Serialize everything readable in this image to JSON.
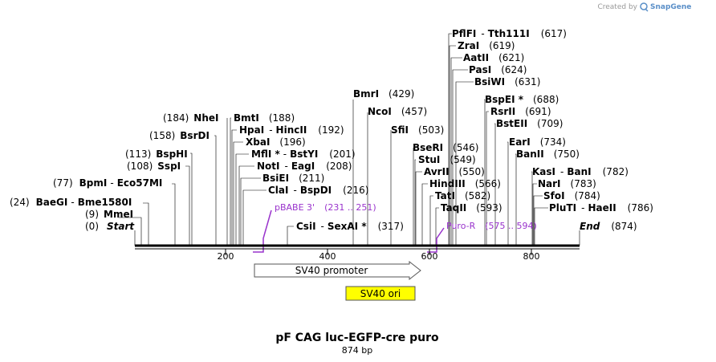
{
  "brand": {
    "credit": "Created by",
    "name": "SnapGene"
  },
  "plasmid": {
    "name": "pF CAG luc-EGFP-cre puro",
    "length_label": "874 bp"
  },
  "ruler": {
    "ticks": [
      "200",
      "400",
      "600",
      "800"
    ]
  },
  "sites": [
    {
      "id": "start",
      "name": "Start",
      "pos": "(0)",
      "italic": true
    },
    {
      "id": "mmei",
      "name": "MmeI",
      "pos": "(9)"
    },
    {
      "id": "baegi",
      "name": "BaeGI",
      "alt": "Bme1580I",
      "pos": "(24)"
    },
    {
      "id": "bpmi",
      "name": "BpmI",
      "alt": "Eco57MI",
      "pos": "(77)"
    },
    {
      "id": "sspi",
      "name": "SspI",
      "pos": "(108)"
    },
    {
      "id": "bsphi",
      "name": "BspHI",
      "pos": "(113)"
    },
    {
      "id": "bsrdi",
      "name": "BsrDI",
      "pos": "(158)"
    },
    {
      "id": "nhei",
      "name": "NheI",
      "pos": "(184)"
    },
    {
      "id": "bmti",
      "name": "BmtI",
      "pos": "(188)"
    },
    {
      "id": "hpai",
      "name": "HpaI",
      "alt": "HincII",
      "pos": "(192)"
    },
    {
      "id": "xbai",
      "name": "XbaI",
      "pos": "(196)"
    },
    {
      "id": "mfli",
      "name": "MflI *",
      "alt": "BstYI",
      "pos": "(201)"
    },
    {
      "id": "noti",
      "name": "NotI",
      "alt": "EagI",
      "pos": "(208)"
    },
    {
      "id": "bsiei",
      "name": "BsiEI",
      "pos": "(211)"
    },
    {
      "id": "clai",
      "name": "ClaI",
      "alt": "BspDI",
      "pos": "(216)"
    },
    {
      "id": "csii",
      "name": "CsiI",
      "alt": "SexAI *",
      "pos": "(317)"
    },
    {
      "id": "bmri",
      "name": "BmrI",
      "pos": "(429)"
    },
    {
      "id": "ncoi",
      "name": "NcoI",
      "pos": "(457)"
    },
    {
      "id": "sfii",
      "name": "SfiI",
      "pos": "(503)"
    },
    {
      "id": "bseri",
      "name": "BseRI",
      "pos": "(546)"
    },
    {
      "id": "stui",
      "name": "StuI",
      "pos": "(549)"
    },
    {
      "id": "avrii",
      "name": "AvrII",
      "pos": "(550)"
    },
    {
      "id": "hindiii",
      "name": "HindIII",
      "pos": "(566)"
    },
    {
      "id": "tati",
      "name": "TatI",
      "pos": "(582)"
    },
    {
      "id": "taqii",
      "name": "TaqII",
      "pos": "(593)"
    },
    {
      "id": "pflfi",
      "name": "PflFI",
      "alt": "Tth111I",
      "pos": "(617)"
    },
    {
      "id": "zrai",
      "name": "ZraI",
      "pos": "(619)"
    },
    {
      "id": "aatii",
      "name": "AatII",
      "pos": "(621)"
    },
    {
      "id": "pasi",
      "name": "PasI",
      "pos": "(624)"
    },
    {
      "id": "bsiwi",
      "name": "BsiWI",
      "pos": "(631)"
    },
    {
      "id": "bspei",
      "name": "BspEI *",
      "pos": "(688)"
    },
    {
      "id": "rsrii",
      "name": "RsrII",
      "pos": "(691)"
    },
    {
      "id": "bsteii",
      "name": "BstEII",
      "pos": "(709)"
    },
    {
      "id": "eari",
      "name": "EarI",
      "pos": "(734)"
    },
    {
      "id": "banii",
      "name": "BanII",
      "pos": "(750)"
    },
    {
      "id": "kasi",
      "name": "KasI",
      "alt": "BanI",
      "pos": "(782)"
    },
    {
      "id": "nari",
      "name": "NarI",
      "pos": "(783)"
    },
    {
      "id": "sfoi",
      "name": "SfoI",
      "pos": "(784)"
    },
    {
      "id": "pluti",
      "name": "PluTI",
      "alt": "HaeII",
      "pos": "(786)"
    },
    {
      "id": "end",
      "name": "End",
      "pos": "(874)",
      "italic": true
    }
  ],
  "primers": [
    {
      "id": "pbabe",
      "name": "pBABE 3'",
      "range": "(231 .. 251)"
    },
    {
      "id": "puror",
      "name": "Puro-R",
      "range": "(575 .. 594)"
    }
  ],
  "features": [
    {
      "id": "sv40-promoter",
      "label": "SV40 promoter",
      "color": "#ffffff"
    },
    {
      "id": "sv40-ori",
      "label": "SV40 ori",
      "color": "#ffff00"
    }
  ],
  "colors": {
    "primer": "#9933cc",
    "backbone": "#000000"
  }
}
